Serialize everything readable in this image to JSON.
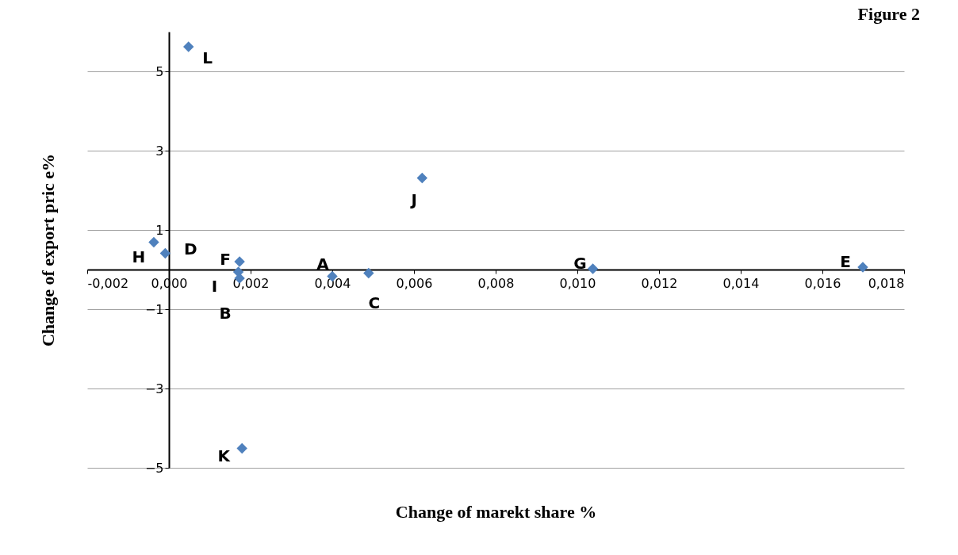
{
  "chart_data": {
    "type": "scatter",
    "xlabel": "Change of marekt share %",
    "ylabel": "Change of export pric e%",
    "x": [
      0.00048,
      0.0062,
      -0.00037,
      -9e-05,
      0.00173,
      0.0017,
      0.00173,
      0.004,
      0.00489,
      0.01038,
      0.01699,
      0.00179
    ],
    "series": [
      {
        "color": "#4f81bd",
        "values": [
          5.62,
          2.31,
          0.69,
          0.41,
          0.2,
          -0.06,
          -0.22,
          -0.17,
          -0.09,
          0.02,
          0.06,
          -4.51
        ]
      }
    ],
    "marker": "diamond",
    "xlim": [
      -0.002,
      0.018
    ],
    "xticks": [
      {
        "value": -0.002,
        "label": "-0,002"
      },
      {
        "value": 0,
        "label": "0,000"
      },
      {
        "value": 0.002,
        "label": "0,002"
      },
      {
        "value": 0.004,
        "label": "0,004"
      },
      {
        "value": 0.006,
        "label": "0,006"
      },
      {
        "value": 0.008,
        "label": "0,008"
      },
      {
        "value": 0.01,
        "label": "0,010"
      },
      {
        "value": 0.012,
        "label": "0,012"
      },
      {
        "value": 0.014,
        "label": "0,014"
      },
      {
        "value": 0.016,
        "label": "0,016"
      },
      {
        "value": 0.018,
        "label": "0,018"
      }
    ],
    "ylim": [
      -5,
      6
    ],
    "yticks": [
      -5,
      -3,
      -1,
      1,
      3,
      5
    ],
    "grid": "y",
    "annotations": [
      {
        "text": "L",
        "x": 0.00048,
        "y": 5.62
      },
      {
        "text": "J",
        "x": 0.0062,
        "y": 2.31
      },
      {
        "text": "H",
        "x": -0.00037,
        "y": 0.69
      },
      {
        "text": "D",
        "x": -9e-05,
        "y": 0.41
      },
      {
        "text": "F",
        "x": 0.00173,
        "y": 0.2
      },
      {
        "text": "I",
        "x": 0.0017,
        "y": -0.06
      },
      {
        "text": "B",
        "x": 0.00173,
        "y": -0.22
      },
      {
        "text": "A",
        "x": 0.004,
        "y": -0.17
      },
      {
        "text": "C",
        "x": 0.00489,
        "y": -0.09
      },
      {
        "text": "G",
        "x": 0.01038,
        "y": 0.02
      },
      {
        "text": "E",
        "x": 0.01699,
        "y": 0.06
      },
      {
        "text": "K",
        "x": 0.00179,
        "y": -4.51
      },
      "Figure 2"
    ]
  }
}
